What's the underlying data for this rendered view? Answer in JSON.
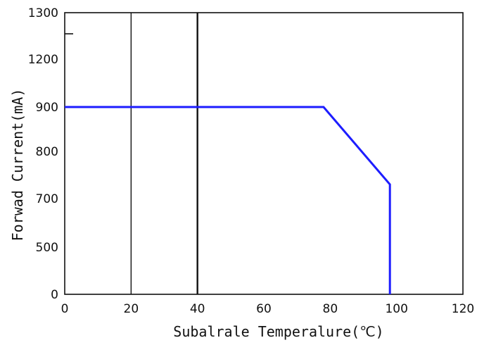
{
  "chart_data": {
    "type": "line",
    "title": "",
    "xlabel": "Subalrale Temperalure(℃)",
    "ylabel": "Forwad Current(mA)",
    "xlim": [
      0,
      120
    ],
    "x_ticks": [
      0,
      20,
      40,
      60,
      80,
      100,
      120
    ],
    "x_tick_labels": [
      "0",
      "20",
      "40",
      "60",
      "80",
      "100",
      "120"
    ],
    "y_tick_labels": [
      "0",
      "500",
      "700",
      "800",
      "900",
      "1200",
      "1300"
    ],
    "grid": false,
    "vertical_lines": [
      20,
      40
    ],
    "series": [
      {
        "color": "#1d1dff",
        "x": [
          0,
          78,
          98,
          98
        ],
        "y": [
          900,
          900,
          730,
          0
        ]
      }
    ]
  }
}
